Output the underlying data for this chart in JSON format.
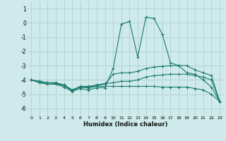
{
  "xlabel": "Humidex (Indice chaleur)",
  "ylabel": "",
  "bg_color": "#ceeaea",
  "grid_color": "#afd0d0",
  "line_color": "#1a7a6e",
  "x_values": [
    0,
    1,
    2,
    3,
    4,
    5,
    6,
    7,
    8,
    9,
    10,
    11,
    12,
    13,
    14,
    15,
    16,
    17,
    18,
    19,
    20,
    21,
    22,
    23
  ],
  "series1": [
    -4.0,
    -4.2,
    -4.3,
    -4.3,
    -4.5,
    -4.8,
    -4.6,
    -4.7,
    -4.55,
    -4.55,
    -3.2,
    -0.1,
    0.1,
    -2.4,
    0.4,
    0.3,
    -0.8,
    -2.8,
    -3.0,
    -3.5,
    -3.6,
    -4.0,
    -4.5,
    -5.5
  ],
  "series2": [
    -4.0,
    -4.15,
    -4.3,
    -4.25,
    -4.4,
    -4.75,
    -4.5,
    -4.5,
    -4.4,
    -4.3,
    -3.6,
    -3.5,
    -3.5,
    -3.4,
    -3.2,
    -3.1,
    -3.05,
    -3.0,
    -3.0,
    -3.0,
    -3.3,
    -3.5,
    -3.7,
    -5.5
  ],
  "series3": [
    -4.0,
    -4.1,
    -4.2,
    -4.2,
    -4.35,
    -4.7,
    -4.45,
    -4.45,
    -4.35,
    -4.25,
    -4.2,
    -4.1,
    -4.1,
    -4.0,
    -3.8,
    -3.7,
    -3.65,
    -3.6,
    -3.6,
    -3.6,
    -3.7,
    -3.8,
    -4.0,
    -5.5
  ],
  "series4": [
    -4.0,
    -4.1,
    -4.2,
    -4.2,
    -4.35,
    -4.7,
    -4.5,
    -4.55,
    -4.45,
    -4.45,
    -4.45,
    -4.45,
    -4.45,
    -4.45,
    -4.45,
    -4.45,
    -4.5,
    -4.5,
    -4.5,
    -4.5,
    -4.6,
    -4.7,
    -5.0,
    -5.5
  ],
  "ylim": [
    -6.5,
    1.5
  ],
  "xlim": [
    -0.5,
    23.5
  ],
  "yticks": [
    1,
    0,
    -1,
    -2,
    -3,
    -4,
    -5,
    -6
  ],
  "xticks": [
    0,
    1,
    2,
    3,
    4,
    5,
    6,
    7,
    8,
    9,
    10,
    11,
    12,
    13,
    14,
    15,
    16,
    17,
    18,
    19,
    20,
    21,
    22,
    23
  ]
}
